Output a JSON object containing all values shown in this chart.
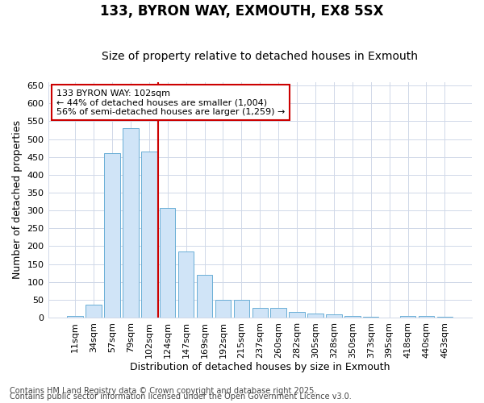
{
  "title": "133, BYRON WAY, EXMOUTH, EX8 5SX",
  "subtitle": "Size of property relative to detached houses in Exmouth",
  "xlabel": "Distribution of detached houses by size in Exmouth",
  "ylabel": "Number of detached properties",
  "categories": [
    "11sqm",
    "34sqm",
    "57sqm",
    "79sqm",
    "102sqm",
    "124sqm",
    "147sqm",
    "169sqm",
    "192sqm",
    "215sqm",
    "237sqm",
    "260sqm",
    "282sqm",
    "305sqm",
    "328sqm",
    "350sqm",
    "373sqm",
    "395sqm",
    "418sqm",
    "440sqm",
    "463sqm"
  ],
  "values": [
    5,
    35,
    460,
    530,
    465,
    307,
    185,
    120,
    50,
    50,
    27,
    27,
    16,
    12,
    8,
    4,
    2,
    1,
    5,
    5,
    2
  ],
  "bar_color": "#d0e4f7",
  "bar_edge_color": "#6aaed6",
  "vline_x_idx": 4,
  "vline_color": "#cc0000",
  "annotation_line1": "133 BYRON WAY: 102sqm",
  "annotation_line2": "← 44% of detached houses are smaller (1,004)",
  "annotation_line3": "56% of semi-detached houses are larger (1,259) →",
  "annotation_box_color": "#ffffff",
  "annotation_box_edge": "#cc0000",
  "ylim": [
    0,
    660
  ],
  "yticks": [
    0,
    50,
    100,
    150,
    200,
    250,
    300,
    350,
    400,
    450,
    500,
    550,
    600,
    650
  ],
  "footer1": "Contains HM Land Registry data © Crown copyright and database right 2025.",
  "footer2": "Contains public sector information licensed under the Open Government Licence v3.0.",
  "bg_color": "#ffffff",
  "plot_bg_color": "#ffffff",
  "grid_color": "#d0d8e8",
  "title_fontsize": 12,
  "subtitle_fontsize": 10,
  "tick_fontsize": 8,
  "label_fontsize": 9,
  "footer_fontsize": 7
}
